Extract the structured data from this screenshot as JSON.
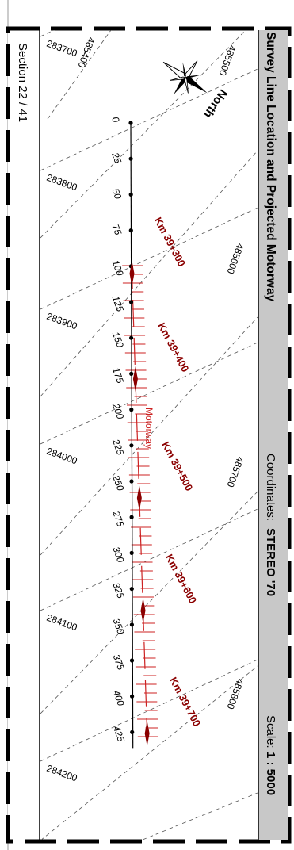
{
  "title": "Survey Line Location and Projected Motorway",
  "coordinates_label": "Coordinates:",
  "coordinates_value": "STEREO '70",
  "scale_label": "Scale:",
  "scale_value": "1 : 5000",
  "section": "Section 22 / 41",
  "north_label": "North",
  "motorway_label": "Motorway",
  "grid_easting_labels": [
    "283700",
    "283800",
    "283900",
    "284000",
    "284100",
    "284200"
  ],
  "grid_northing_labels": [
    "485400",
    "485500",
    "485600",
    "485700",
    "485800"
  ],
  "chainage_labels": [
    "0",
    "25",
    "50",
    "75",
    "100",
    "125",
    "150",
    "175",
    "200",
    "225",
    "250",
    "275",
    "300",
    "325",
    "350",
    "375",
    "400",
    "425"
  ],
  "km_labels": [
    "Km 39+300",
    "Km 39+400",
    "Km 39+500",
    "Km 39+600",
    "Km 39+700"
  ],
  "colors": {
    "header_bg": "#c8c8c8",
    "motorway": "#cc2222",
    "km_label": "#8b0000",
    "grid": "#555555",
    "frame": "#000000"
  }
}
